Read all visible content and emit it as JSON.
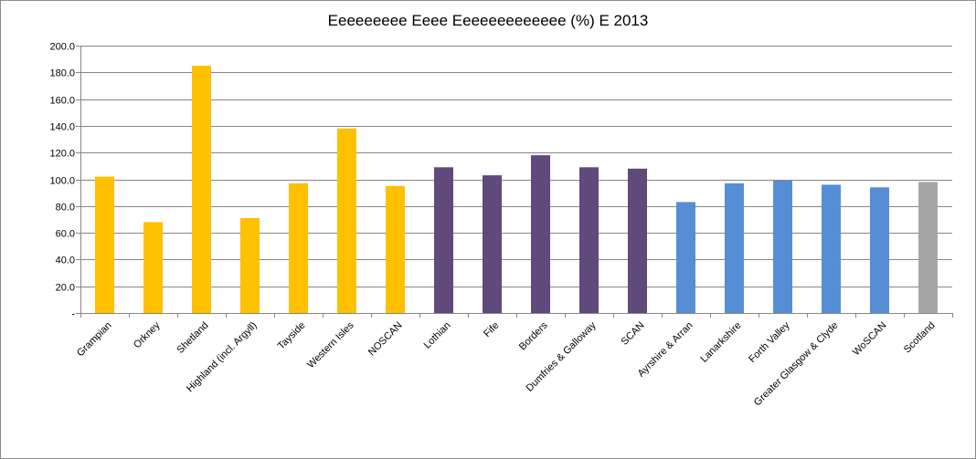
{
  "chart_data": {
    "type": "bar",
    "title": "Eeeeeeeee Eeee Eeeeeeeeeeeee (%) E 2013",
    "xlabel": "",
    "ylabel": "",
    "ylim": [
      0,
      200
    ],
    "ytick_values": [
      0,
      20,
      40,
      60,
      80,
      100,
      120,
      140,
      160,
      180,
      200
    ],
    "ytick_labels": [
      "-",
      "20.0",
      "40.0",
      "60.0",
      "80.0",
      "100.0",
      "120.0",
      "140.0",
      "160.0",
      "180.0",
      "200.0"
    ],
    "grid": true,
    "legend": "none",
    "categories": [
      "Grampian",
      "Orkney",
      "Shetland",
      "Highland (incl. Argyll)",
      "Tayside",
      "Western Isles",
      "NOSCAN",
      "Lothian",
      "Fife",
      "Borders",
      "Dumfries & Galloway",
      "SCAN",
      "Ayrshire & Arran",
      "Lanarkshire",
      "Forth Valley",
      "Greater Glasgow & Clyde",
      "WoSCAN",
      "Scotland"
    ],
    "values": [
      102,
      68,
      185,
      71,
      97,
      138,
      95,
      109,
      103,
      118,
      109,
      108,
      83,
      97,
      99,
      96,
      94,
      98
    ],
    "bar_colors": [
      "#ffc000",
      "#ffc000",
      "#ffc000",
      "#ffc000",
      "#ffc000",
      "#ffc000",
      "#ffc000",
      "#604a7b",
      "#604a7b",
      "#604a7b",
      "#604a7b",
      "#604a7b",
      "#558ed5",
      "#558ed5",
      "#558ed5",
      "#558ed5",
      "#558ed5",
      "#a6a6a6"
    ],
    "gridline_color": "#868686",
    "axis_color": "#868686"
  }
}
